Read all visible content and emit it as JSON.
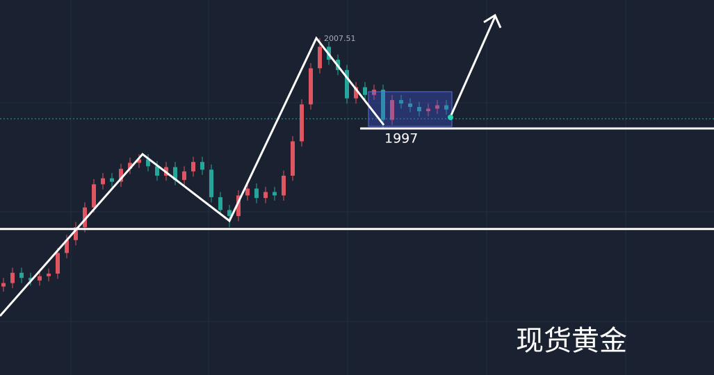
{
  "chart_data": {
    "type": "candlestick",
    "title": "现货黄金",
    "ylim": [
      1968.3,
      2011.95
    ],
    "up_color": "#e05562",
    "down_color": "#26a69a",
    "open": [
      1978.6,
      1979.0,
      1980.2,
      1979.6,
      1979.3,
      1979.8,
      1980.1,
      1982.5,
      1984.0,
      1985.5,
      1987.8,
      1990.5,
      1991.2,
      1990.8,
      1992.3,
      1993.0,
      1993.4,
      1992.6,
      1991.5,
      1992.5,
      1991.0,
      1992.0,
      1993.1,
      1992.2,
      1989.0,
      1987.5,
      1986.8,
      1989.2,
      1990.0,
      1988.9,
      1989.6,
      1989.2,
      1991.5,
      1995.5,
      1999.8,
      2004.0,
      2006.5,
      2005.0,
      2003.8,
      2000.5,
      2001.8,
      2000.9,
      2001.5,
      1998.0,
      2000.3,
      1999.9,
      1999.5,
      1999.0,
      1999.3,
      1999.7
    ],
    "high": [
      1979.6,
      1980.8,
      1980.8,
      1980.2,
      1980.4,
      1980.7,
      1983.1,
      1984.6,
      1986.1,
      1988.4,
      1991.1,
      1991.8,
      1991.8,
      1992.9,
      1993.6,
      1994.0,
      1994.0,
      1993.2,
      1993.1,
      1993.1,
      1992.6,
      1993.7,
      1993.7,
      1992.8,
      1989.6,
      1988.1,
      1989.8,
      1990.6,
      1990.6,
      1990.2,
      1990.2,
      1992.1,
      1996.1,
      2000.4,
      2004.6,
      2007.51,
      2007.1,
      2005.6,
      2004.4,
      2002.4,
      2002.4,
      2002.1,
      2002.1,
      2000.9,
      2000.9,
      2000.5,
      2000.1,
      1999.9,
      2000.3,
      2000.3
    ],
    "low": [
      1978.0,
      1978.4,
      1979.0,
      1978.7,
      1978.7,
      1979.2,
      1979.5,
      1981.9,
      1983.4,
      1984.9,
      1987.2,
      1989.9,
      1990.2,
      1990.2,
      1991.7,
      1992.4,
      1992.0,
      1990.9,
      1990.9,
      1990.4,
      1990.4,
      1991.4,
      1991.6,
      1988.4,
      1986.9,
      1985.5,
      1986.2,
      1988.6,
      1988.3,
      1988.3,
      1988.6,
      1988.6,
      1990.9,
      1994.9,
      1999.2,
      2003.4,
      2004.4,
      2003.2,
      1999.9,
      1999.9,
      2000.3,
      2000.3,
      1997.0,
      1997.4,
      1999.3,
      1998.9,
      1998.4,
      1998.4,
      1998.7,
      1998.6
    ],
    "close": [
      1979.0,
      1980.2,
      1979.6,
      1979.3,
      1979.8,
      1980.1,
      1982.5,
      1984.0,
      1985.5,
      1987.8,
      1990.5,
      1991.2,
      1990.8,
      1992.3,
      1993.0,
      1993.4,
      1992.6,
      1991.5,
      1992.5,
      1991.0,
      1992.0,
      1993.1,
      1992.2,
      1989.0,
      1987.5,
      1986.8,
      1989.2,
      1990.0,
      1988.9,
      1989.6,
      1989.2,
      1991.5,
      1995.5,
      1999.8,
      2004.0,
      2006.5,
      2005.0,
      2003.8,
      2000.5,
      2001.8,
      2000.9,
      2001.5,
      1998.0,
      2000.3,
      1999.9,
      1999.5,
      1999.0,
      1999.3,
      1999.7,
      1999.2
    ],
    "levels": [
      1997,
      1985.3
    ]
  }
}
